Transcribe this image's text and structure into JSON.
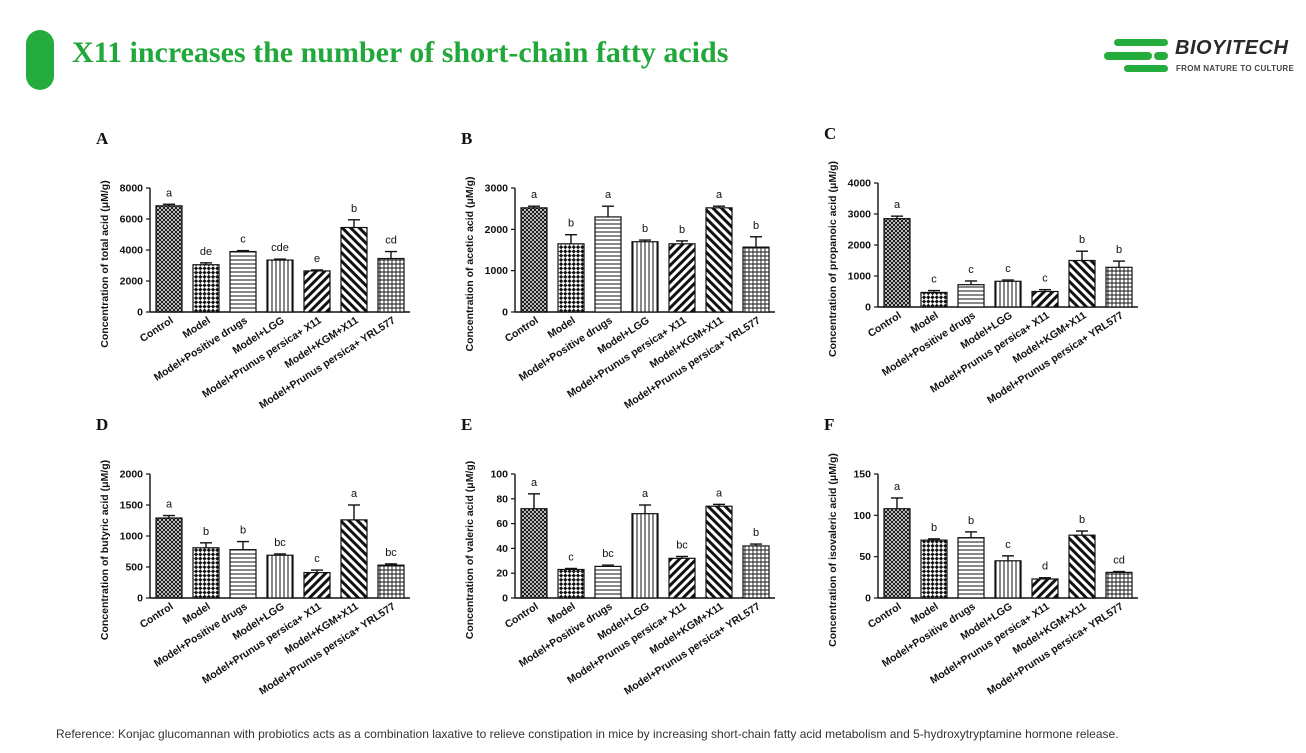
{
  "page": {
    "title": "X11 increases the number of short-chain fatty acids",
    "reference": "Reference:  Konjac glucomannan with probiotics acts as a combination laxative to relieve constipation in mice by increasing short-chain fatty acid metabolism and 5-hydroxytryptamine hormone release."
  },
  "brand": {
    "name": "BIOYITECH",
    "tagline": "FROM NATURE TO CULTURE",
    "color": "#25ac3e"
  },
  "chart_data": [
    {
      "panel": "A",
      "type": "bar",
      "ylabel": "Concentration of total acid (μM/g)",
      "ylim": [
        0,
        8000
      ],
      "yticks": [
        0,
        2000,
        4000,
        6000,
        8000
      ],
      "categories": [
        "Control",
        "Model",
        "Model+Positive drugs",
        "Model+LGG",
        "Model+Prunus persica+ X11",
        "Model+KGM+X11",
        "Model+Prunus persica+ YRL577"
      ],
      "values": [
        6850,
        3050,
        3900,
        3350,
        2650,
        5450,
        3450
      ],
      "errors": [
        100,
        120,
        60,
        60,
        60,
        500,
        450
      ],
      "letters": [
        "a",
        "de",
        "c",
        "cde",
        "e",
        "b",
        "cd"
      ]
    },
    {
      "panel": "B",
      "type": "bar",
      "ylabel": "Concentration of acetic acid (μM/g)",
      "ylim": [
        0,
        3000
      ],
      "yticks": [
        0,
        1000,
        2000,
        3000
      ],
      "categories": [
        "Control",
        "Model",
        "Model+Positive drugs",
        "Model+LGG",
        "Model+Prunus persica+ X11",
        "Model+KGM+X11",
        "Model+Prunus persica+ YRL577"
      ],
      "values": [
        2520,
        1650,
        2300,
        1700,
        1650,
        2520,
        1570
      ],
      "errors": [
        40,
        220,
        260,
        40,
        70,
        40,
        250
      ],
      "letters": [
        "a",
        "b",
        "a",
        "b",
        "b",
        "a",
        "b"
      ]
    },
    {
      "panel": "C",
      "type": "bar",
      "ylabel": "Concentration of propanoic acid (μM/g)",
      "ylim": [
        0,
        4000
      ],
      "yticks": [
        0,
        1000,
        2000,
        3000,
        4000
      ],
      "categories": [
        "Control",
        "Model",
        "Model+Positive drugs",
        "Model+LGG",
        "Model+Prunus persica+ X11",
        "Model+KGM+X11",
        "Model+Prunus persica+ YRL577"
      ],
      "values": [
        2850,
        470,
        720,
        830,
        500,
        1500,
        1280
      ],
      "errors": [
        80,
        60,
        120,
        40,
        60,
        300,
        200
      ],
      "letters": [
        "a",
        "c",
        "c",
        "c",
        "c",
        "b",
        "b"
      ]
    },
    {
      "panel": "D",
      "type": "bar",
      "ylabel": "Concentration of butyric acid (μM/g)",
      "ylim": [
        0,
        2000
      ],
      "yticks": [
        0,
        500,
        1000,
        1500,
        2000
      ],
      "categories": [
        "Control",
        "Model",
        "Model+Positive drugs",
        "Model+LGG",
        "Model+Prunus persica+ X11",
        "Model+KGM+X11",
        "Model+Prunus persica+ YRL577"
      ],
      "values": [
        1290,
        810,
        780,
        690,
        410,
        1260,
        530
      ],
      "errors": [
        40,
        80,
        130,
        20,
        40,
        240,
        20
      ],
      "letters": [
        "a",
        "b",
        "b",
        "bc",
        "c",
        "a",
        "bc"
      ]
    },
    {
      "panel": "E",
      "type": "bar",
      "ylabel": "Concentration of valeric acid (μM/g)",
      "ylim": [
        0,
        100
      ],
      "yticks": [
        0,
        20,
        40,
        60,
        80,
        100
      ],
      "categories": [
        "Control",
        "Model",
        "Model+Positive drugs",
        "Model+LGG",
        "Model+Prunus persica+ X11",
        "Model+KGM+X11",
        "Model+Prunus persica+ YRL577"
      ],
      "values": [
        72,
        23,
        25.5,
        68,
        32,
        74,
        42
      ],
      "errors": [
        12,
        0.8,
        1,
        7,
        1.5,
        1.5,
        1.5
      ],
      "letters": [
        "a",
        "c",
        "bc",
        "a",
        "bc",
        "a",
        "b"
      ]
    },
    {
      "panel": "F",
      "type": "bar",
      "ylabel": "Concentration of isovaleric acid (μM/g)",
      "ylim": [
        0,
        150
      ],
      "yticks": [
        0,
        50,
        100,
        150
      ],
      "categories": [
        "Control",
        "Model",
        "Model+Positive drugs",
        "Model+LGG",
        "Model+Prunus persica+ X11",
        "Model+KGM+X11",
        "Model+Prunus persica+ YRL577"
      ],
      "values": [
        108,
        70,
        73,
        45,
        23,
        76,
        31
      ],
      "errors": [
        13,
        1.5,
        7,
        6,
        1.5,
        5,
        1
      ],
      "letters": [
        "a",
        "b",
        "b",
        "c",
        "d",
        "b",
        "cd"
      ]
    }
  ]
}
